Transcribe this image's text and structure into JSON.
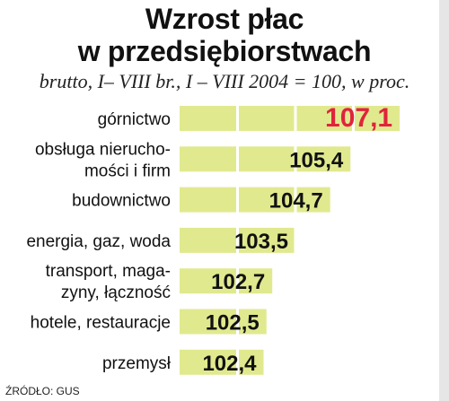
{
  "colors": {
    "bar": "#e1e98f",
    "highlight_value": "#e0243c",
    "value_text": "#111111",
    "grid": "#ffffff"
  },
  "chart_data": {
    "type": "bar",
    "orientation": "horizontal",
    "title": "Wzrost płac w przedsiębiorstwach",
    "title_lines": [
      "Wzrost płac",
      "w przedsiębiorstwach"
    ],
    "subtitle": "brutto, I– VIII br., I – VIII 2004 = 100, w proc.",
    "categories": [
      "górnictwo",
      "obsługa nierucho- mości i firm",
      "budownictwo",
      "energia, gaz, woda",
      "transport, maga- zyny, łączność",
      "hotele, restauracje",
      "przemysł"
    ],
    "category_lines": [
      [
        "górnictwo"
      ],
      [
        "obsługa nierucho-",
        "mości i firm"
      ],
      [
        "budownictwo"
      ],
      [
        "energia, gaz, woda"
      ],
      [
        "transport, maga-",
        "zyny, łączność"
      ],
      [
        "hotele, restauracje"
      ],
      [
        "przemysł"
      ]
    ],
    "values": [
      107.1,
      105.4,
      104.7,
      103.5,
      102.7,
      102.5,
      102.4
    ],
    "value_labels": [
      "107,1",
      "105,4",
      "104,7",
      "103,5",
      "102,7",
      "102,5",
      "102,4"
    ],
    "highlight_index": 0,
    "xlim": [
      99.5,
      107.5
    ],
    "grid": true,
    "source": "ŹRÓDŁO: GUS"
  }
}
